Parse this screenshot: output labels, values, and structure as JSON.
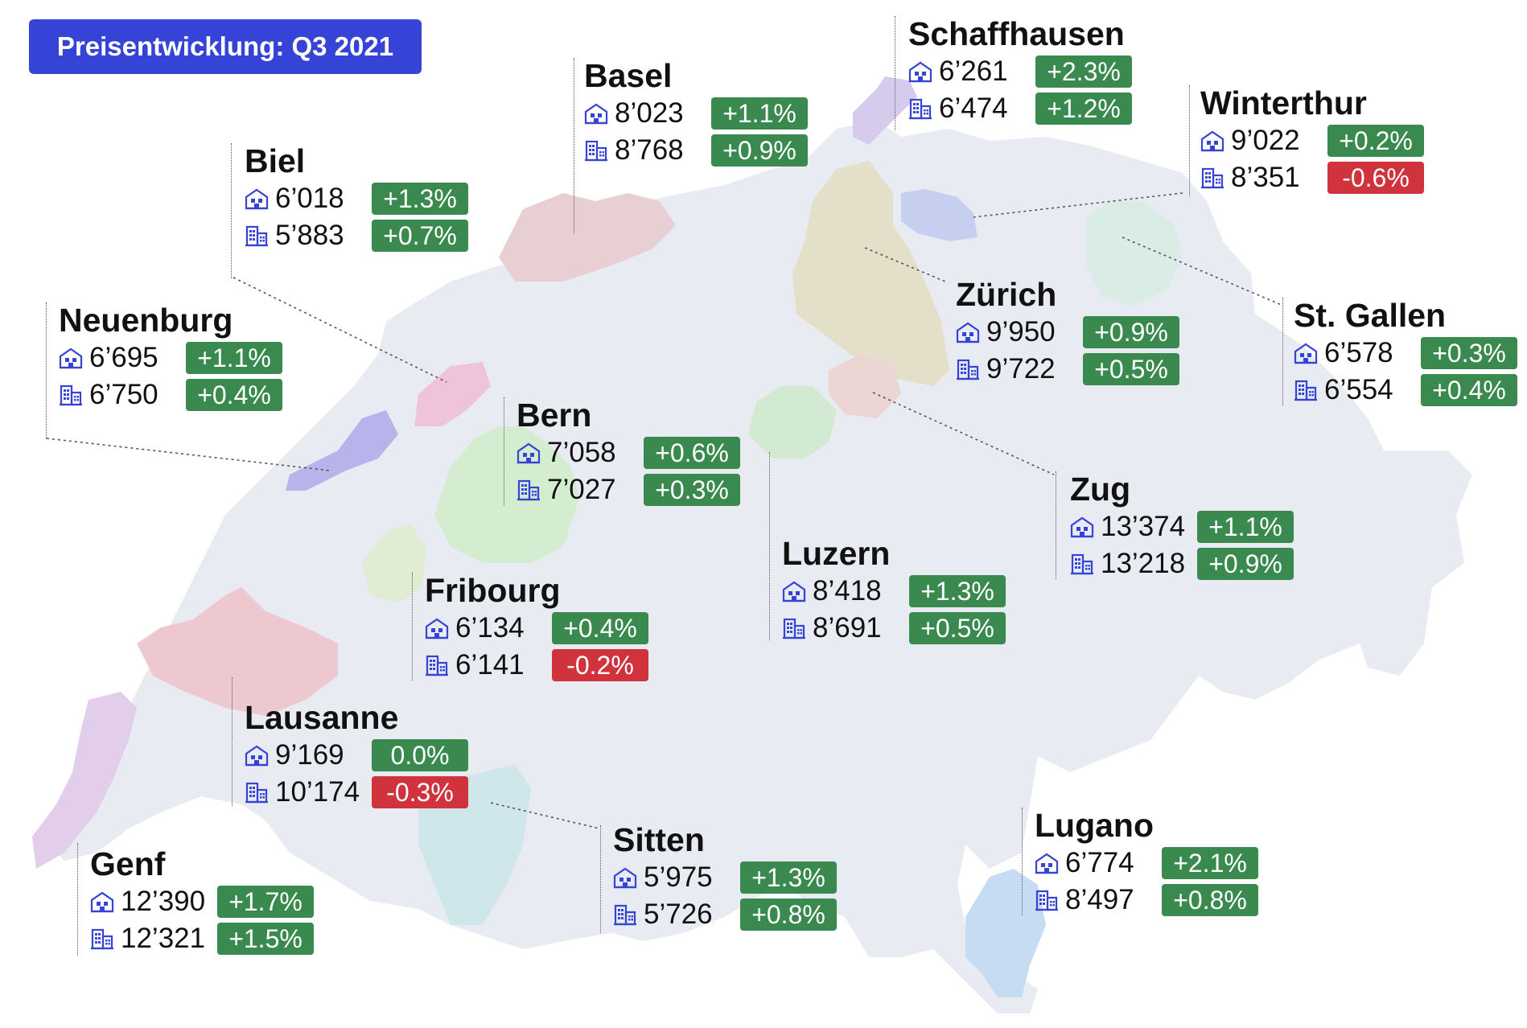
{
  "title": "Preisentwicklung: Q3 2021",
  "icons": {
    "row1": "house-icon",
    "row2": "apartment-building-icon"
  },
  "colors": {
    "accent": "#3543d6",
    "positive": "#3a8a4f",
    "negative": "#d0333c",
    "map_base": "#e9ebf2"
  },
  "cities": [
    {
      "id": "basel",
      "name": "Basel",
      "house": {
        "value": "8’023",
        "change": "+1.1%"
      },
      "apartment": {
        "value": "8’768",
        "change": "+0.9%"
      }
    },
    {
      "id": "schaffhausen",
      "name": "Schaffhausen",
      "house": {
        "value": "6’261",
        "change": "+2.3%"
      },
      "apartment": {
        "value": "6’474",
        "change": "+1.2%"
      }
    },
    {
      "id": "winterthur",
      "name": "Winterthur",
      "house": {
        "value": "9’022",
        "change": "+0.2%"
      },
      "apartment": {
        "value": "8’351",
        "change": "-0.6%"
      }
    },
    {
      "id": "biel",
      "name": "Biel",
      "house": {
        "value": "6’018",
        "change": "+1.3%"
      },
      "apartment": {
        "value": "5’883",
        "change": "+0.7%"
      }
    },
    {
      "id": "zuerich",
      "name": "Zürich",
      "house": {
        "value": "9’950",
        "change": "+0.9%"
      },
      "apartment": {
        "value": "9’722",
        "change": "+0.5%"
      }
    },
    {
      "id": "stgallen",
      "name": "St. Gallen",
      "house": {
        "value": "6’578",
        "change": "+0.3%"
      },
      "apartment": {
        "value": "6’554",
        "change": "+0.4%"
      }
    },
    {
      "id": "neuenburg",
      "name": "Neuenburg",
      "house": {
        "value": "6’695",
        "change": "+1.1%"
      },
      "apartment": {
        "value": "6’750",
        "change": "+0.4%"
      }
    },
    {
      "id": "bern",
      "name": "Bern",
      "house": {
        "value": "7’058",
        "change": "+0.6%"
      },
      "apartment": {
        "value": "7’027",
        "change": "+0.3%"
      }
    },
    {
      "id": "zug",
      "name": "Zug",
      "house": {
        "value": "13’374",
        "change": "+1.1%"
      },
      "apartment": {
        "value": "13’218",
        "change": "+0.9%"
      }
    },
    {
      "id": "luzern",
      "name": "Luzern",
      "house": {
        "value": "8’418",
        "change": "+1.3%"
      },
      "apartment": {
        "value": "8’691",
        "change": "+0.5%"
      }
    },
    {
      "id": "fribourg",
      "name": "Fribourg",
      "house": {
        "value": "6’134",
        "change": "+0.4%"
      },
      "apartment": {
        "value": "6’141",
        "change": "-0.2%"
      }
    },
    {
      "id": "lausanne",
      "name": "Lausanne",
      "house": {
        "value": "9’169",
        "change": "0.0%"
      },
      "apartment": {
        "value": "10’174",
        "change": "-0.3%"
      }
    },
    {
      "id": "sitten",
      "name": "Sitten",
      "house": {
        "value": "5’975",
        "change": "+1.3%"
      },
      "apartment": {
        "value": "5’726",
        "change": "+0.8%"
      }
    },
    {
      "id": "lugano",
      "name": "Lugano",
      "house": {
        "value": "6’774",
        "change": "+2.1%"
      },
      "apartment": {
        "value": "8’497",
        "change": "+0.8%"
      }
    },
    {
      "id": "genf",
      "name": "Genf",
      "house": {
        "value": "12’390",
        "change": "+1.7%"
      },
      "apartment": {
        "value": "12’321",
        "change": "+1.5%"
      }
    }
  ]
}
